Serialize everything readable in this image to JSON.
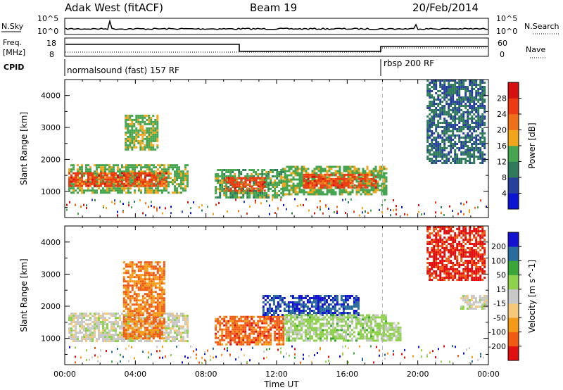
{
  "header": {
    "station": "Adak West (fitACF)",
    "beam": "Beam 19",
    "date": "20/Feb/2014"
  },
  "labels": {
    "nsky": "N.Sky",
    "nsearch": "N.Search",
    "freq1": "Freq.",
    "freq2": "[MHz]",
    "nave": "Nave",
    "cpid": "CPID",
    "cpid_seg1": "normalsound (fast) 157 RF",
    "cpid_seg2": "rbsp 200 RF",
    "noise_top": "10^5",
    "noise_bot": "10^0",
    "freq_ticks": [
      "18",
      "8"
    ],
    "nave_ticks": [
      "60",
      "0"
    ]
  },
  "chart_data": [
    {
      "type": "heatmap",
      "title": "",
      "xlabel": "Time UT",
      "ylabel": "Slant Range [km]",
      "xticks": [
        "00:00",
        "04:00",
        "08:00",
        "12:00",
        "16:00",
        "20:00",
        "00:00"
      ],
      "yticks": [
        "1000",
        "2000",
        "3000",
        "4000"
      ],
      "xlim_hours": [
        0,
        24
      ],
      "ylim_km": [
        180,
        4500
      ],
      "colorbar": {
        "label": "Power [dB]",
        "ticks": [
          "4",
          "8",
          "12",
          "16",
          "20",
          "24",
          "28"
        ],
        "range": [
          0,
          30
        ]
      },
      "colors": [
        "#0a14d2",
        "#27409b",
        "#2f7a5a",
        "#46a650",
        "#f0a51a",
        "#f0701a",
        "#ec3a12",
        "#d60f0f"
      ],
      "regions": [
        {
          "t": [
            0.2,
            6.9
          ],
          "r": [
            950,
            1850
          ],
          "value": 14
        },
        {
          "t": [
            0.2,
            5.8
          ],
          "r": [
            1200,
            1600
          ],
          "value": 24
        },
        {
          "t": [
            3.4,
            5.3
          ],
          "r": [
            2300,
            3400
          ],
          "value": 14
        },
        {
          "t": [
            8.5,
            12.4
          ],
          "r": [
            800,
            1700
          ],
          "value": 13
        },
        {
          "t": [
            9.0,
            11.3
          ],
          "r": [
            1000,
            1450
          ],
          "value": 24
        },
        {
          "t": [
            12.3,
            18.2
          ],
          "r": [
            900,
            1800
          ],
          "value": 14
        },
        {
          "t": [
            13.5,
            17.6
          ],
          "r": [
            1100,
            1550
          ],
          "value": 24
        },
        {
          "t": [
            20.5,
            23.8
          ],
          "r": [
            1900,
            4500
          ],
          "value": 8
        }
      ]
    },
    {
      "type": "heatmap",
      "title": "",
      "xlabel": "Time UT",
      "ylabel": "Slant Range [km]",
      "xticks": [
        "00:00",
        "04:00",
        "08:00",
        "12:00",
        "16:00",
        "20:00",
        "00:00"
      ],
      "yticks": [
        "1000",
        "2000",
        "3000",
        "4000"
      ],
      "xlim_hours": [
        0,
        24
      ],
      "ylim_km": [
        180,
        4500
      ],
      "colorbar": {
        "label": "Velocity [m s^-1]",
        "ticks": [
          "200",
          "100",
          "50",
          "15",
          "-15",
          "-50",
          "-100",
          "-200"
        ],
        "range": [
          -250,
          250
        ]
      },
      "colors": [
        "#e01010",
        "#f05a12",
        "#f59a18",
        "#f5c878",
        "#c8c8c8",
        "#8ed14a",
        "#3aa63a",
        "#2a6c9c",
        "#1212d0"
      ],
      "regions": [
        {
          "t": [
            0.2,
            6.9
          ],
          "r": [
            900,
            1800
          ],
          "value": 0
        },
        {
          "t": [
            3.3,
            5.6
          ],
          "r": [
            1000,
            3400
          ],
          "value": -140
        },
        {
          "t": [
            8.5,
            12.4
          ],
          "r": [
            800,
            1700
          ],
          "value": -160
        },
        {
          "t": [
            11.2,
            16.6
          ],
          "r": [
            1750,
            2350
          ],
          "value": 190
        },
        {
          "t": [
            12.4,
            18.2
          ],
          "r": [
            950,
            1750
          ],
          "value": 45
        },
        {
          "t": [
            18.0,
            19.0
          ],
          "r": [
            950,
            1500
          ],
          "value": 40
        },
        {
          "t": [
            20.5,
            23.8
          ],
          "r": [
            2800,
            4500
          ],
          "value": -210
        },
        {
          "t": [
            22.4,
            23.9
          ],
          "r": [
            1950,
            2350
          ],
          "value": 5
        }
      ]
    }
  ]
}
